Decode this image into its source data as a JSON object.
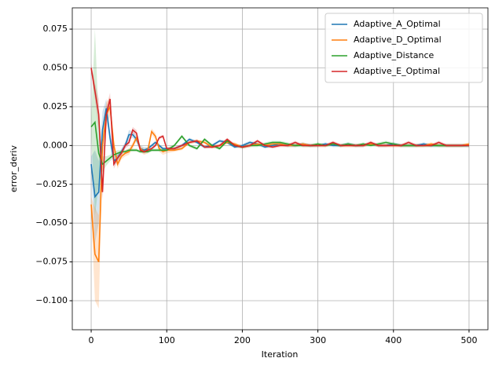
{
  "chart_data": {
    "type": "line",
    "xlabel": "Iteration",
    "ylabel": "error_deriv",
    "x": [
      0,
      5,
      10,
      15,
      20,
      25,
      30,
      35,
      40,
      45,
      50,
      55,
      60,
      65,
      70,
      75,
      80,
      85,
      90,
      95,
      100,
      110,
      120,
      130,
      140,
      150,
      160,
      170,
      180,
      190,
      200,
      210,
      220,
      230,
      240,
      250,
      260,
      270,
      280,
      290,
      300,
      310,
      320,
      330,
      340,
      350,
      360,
      370,
      380,
      390,
      400,
      410,
      420,
      430,
      440,
      450,
      460,
      470,
      480,
      490,
      500
    ],
    "xlim": [
      -25,
      525
    ],
    "xticks": [
      0,
      100,
      200,
      300,
      400,
      500
    ],
    "ylim": [
      -0.1187,
      0.0887
    ],
    "yticks": [
      {
        "value": -0.1,
        "label": "−0.100"
      },
      {
        "value": -0.075,
        "label": "−0.075"
      },
      {
        "value": -0.05,
        "label": "−0.050"
      },
      {
        "value": -0.025,
        "label": "−0.025"
      },
      {
        "value": 0,
        "label": "0.000"
      },
      {
        "value": 0.025,
        "label": "0.025"
      },
      {
        "value": 0.05,
        "label": "0.050"
      },
      {
        "value": 0.075,
        "label": "0.075"
      }
    ],
    "grid": true,
    "legend": "upper right",
    "series": [
      {
        "name": "Adaptive_A_Optimal",
        "color": "#1f77b4",
        "values": [
          -0.012,
          -0.033,
          -0.03,
          0.01,
          0.024,
          0.005,
          -0.01,
          -0.008,
          -0.004,
          0.0,
          0.007,
          0.007,
          0.004,
          -0.002,
          -0.003,
          -0.002,
          0.0,
          0.002,
          0.0,
          -0.002,
          -0.002,
          -0.002,
          0.0,
          0.004,
          0.002,
          -0.001,
          0.0,
          0.003,
          0.002,
          -0.001,
          0.0,
          0.002,
          0.001,
          -0.001,
          0.0,
          0.001,
          0.0,
          0.0,
          0.001,
          0.0,
          0.0,
          0.001,
          0.0,
          0.0,
          0.001,
          0.0,
          0.0,
          0.001,
          0.0,
          0.0,
          0.001,
          0.0,
          0.0,
          0.0,
          0.001,
          0.0,
          0.0,
          0.0,
          0.0,
          0.0,
          0.0
        ],
        "errors": [
          0.005,
          0.03,
          0.02,
          0.012,
          0.006,
          0.004,
          0.003,
          0.002,
          0.002,
          0.002,
          0.003,
          0.002,
          0.002,
          0.002,
          0.002,
          0.001,
          0.001,
          0.001,
          0.001,
          0.001,
          0.001,
          0.001,
          0.001,
          0.001,
          0.001,
          0.001,
          0.001,
          0.001,
          0.001,
          0.001,
          0.001,
          0.001,
          0.001,
          0.001,
          0.001,
          0.001,
          0.001,
          0.001,
          0.001,
          0.001,
          0.001,
          0.001,
          0.001,
          0.001,
          0.001,
          0.001,
          0.001,
          0.001,
          0.001,
          0.001,
          0.001,
          0.001,
          0.001,
          0.001,
          0.001,
          0.001,
          0.001,
          0.001,
          0.001,
          0.001,
          0.001
        ]
      },
      {
        "name": "Adaptive_D_Optimal",
        "color": "#ff7f0e",
        "values": [
          -0.038,
          -0.07,
          -0.075,
          0.0,
          0.02,
          0.025,
          0.0,
          -0.012,
          -0.007,
          -0.005,
          -0.004,
          0.0,
          0.005,
          -0.002,
          -0.004,
          -0.003,
          0.009,
          0.006,
          -0.002,
          -0.004,
          -0.003,
          -0.003,
          -0.002,
          0.002,
          0.003,
          0.002,
          -0.001,
          0.0,
          0.002,
          0.001,
          -0.001,
          0.0,
          0.001,
          0.0,
          0.001,
          0.001,
          0.0,
          0.0,
          0.001,
          0.0,
          0.0,
          0.0,
          0.001,
          0.0,
          0.0,
          0.0,
          0.0,
          0.001,
          0.0,
          0.0,
          0.0,
          0.0,
          0.0,
          0.0,
          0.0,
          0.001,
          0.0,
          0.0,
          0.0,
          0.0,
          0.001
        ],
        "errors": [
          0.005,
          0.03,
          0.03,
          0.01,
          0.008,
          0.006,
          0.004,
          0.003,
          0.002,
          0.002,
          0.002,
          0.002,
          0.002,
          0.002,
          0.002,
          0.002,
          0.002,
          0.002,
          0.002,
          0.002,
          0.002,
          0.001,
          0.001,
          0.001,
          0.001,
          0.001,
          0.001,
          0.001,
          0.001,
          0.001,
          0.001,
          0.001,
          0.001,
          0.001,
          0.001,
          0.001,
          0.001,
          0.001,
          0.001,
          0.001,
          0.001,
          0.001,
          0.001,
          0.001,
          0.001,
          0.001,
          0.001,
          0.001,
          0.001,
          0.001,
          0.001,
          0.001,
          0.001,
          0.001,
          0.001,
          0.001,
          0.001,
          0.001,
          0.001,
          0.001,
          0.001
        ]
      },
      {
        "name": "Adaptive_Distance",
        "color": "#2ca02c",
        "values": [
          0.012,
          0.015,
          -0.005,
          -0.012,
          -0.01,
          -0.008,
          -0.006,
          -0.005,
          -0.004,
          -0.004,
          -0.003,
          -0.003,
          -0.003,
          -0.004,
          -0.004,
          -0.004,
          -0.003,
          -0.003,
          -0.003,
          -0.003,
          -0.003,
          0.0,
          0.006,
          0.0,
          -0.002,
          0.004,
          0.0,
          -0.002,
          0.003,
          0.0,
          -0.001,
          0.0,
          0.0,
          0.001,
          0.002,
          0.002,
          0.001,
          0.0,
          0.0,
          0.0,
          0.001,
          0.0,
          0.001,
          0.0,
          0.001,
          0.0,
          0.001,
          0.0,
          0.001,
          0.002,
          0.001,
          0.0,
          0.0,
          0.0,
          0.0,
          0.0,
          0.0,
          0.0,
          0.0,
          0.0,
          0.0
        ],
        "errors": [
          0.005,
          0.06,
          0.02,
          0.005,
          0.003,
          0.002,
          0.002,
          0.002,
          0.001,
          0.001,
          0.001,
          0.001,
          0.001,
          0.001,
          0.001,
          0.001,
          0.001,
          0.001,
          0.001,
          0.001,
          0.001,
          0.001,
          0.001,
          0.001,
          0.001,
          0.001,
          0.001,
          0.001,
          0.001,
          0.001,
          0.001,
          0.001,
          0.001,
          0.001,
          0.001,
          0.001,
          0.001,
          0.001,
          0.001,
          0.001,
          0.001,
          0.001,
          0.001,
          0.001,
          0.001,
          0.001,
          0.001,
          0.001,
          0.001,
          0.001,
          0.001,
          0.001,
          0.001,
          0.001,
          0.001,
          0.001,
          0.001,
          0.001,
          0.001,
          0.001,
          0.001
        ]
      },
      {
        "name": "Adaptive_E_Optimal",
        "color": "#d62728",
        "values": [
          0.05,
          0.035,
          0.02,
          -0.03,
          0.02,
          0.03,
          -0.012,
          -0.008,
          -0.005,
          0.0,
          0.002,
          0.01,
          0.008,
          -0.003,
          -0.004,
          -0.003,
          -0.002,
          0.0,
          0.005,
          0.006,
          -0.002,
          -0.002,
          0.0,
          0.002,
          0.003,
          -0.001,
          -0.001,
          0.0,
          0.004,
          0.0,
          -0.001,
          0.0,
          0.003,
          0.0,
          -0.001,
          0.0,
          0.0,
          0.002,
          0.0,
          0.0,
          0.0,
          0.0,
          0.002,
          0.0,
          0.0,
          0.0,
          0.0,
          0.002,
          0.0,
          0.0,
          0.0,
          0.0,
          0.002,
          0.0,
          0.0,
          0.0,
          0.002,
          0.0,
          0.0,
          0.0,
          0.0
        ],
        "errors": [
          0.003,
          0.005,
          0.01,
          0.005,
          0.005,
          0.004,
          0.003,
          0.002,
          0.002,
          0.002,
          0.002,
          0.002,
          0.002,
          0.001,
          0.001,
          0.001,
          0.001,
          0.001,
          0.001,
          0.001,
          0.001,
          0.001,
          0.001,
          0.001,
          0.001,
          0.001,
          0.001,
          0.001,
          0.001,
          0.001,
          0.001,
          0.001,
          0.001,
          0.001,
          0.001,
          0.001,
          0.001,
          0.001,
          0.001,
          0.001,
          0.001,
          0.001,
          0.001,
          0.001,
          0.001,
          0.001,
          0.001,
          0.001,
          0.001,
          0.001,
          0.001,
          0.001,
          0.001,
          0.001,
          0.001,
          0.001,
          0.001,
          0.001,
          0.001,
          0.001,
          0.001
        ]
      }
    ]
  }
}
